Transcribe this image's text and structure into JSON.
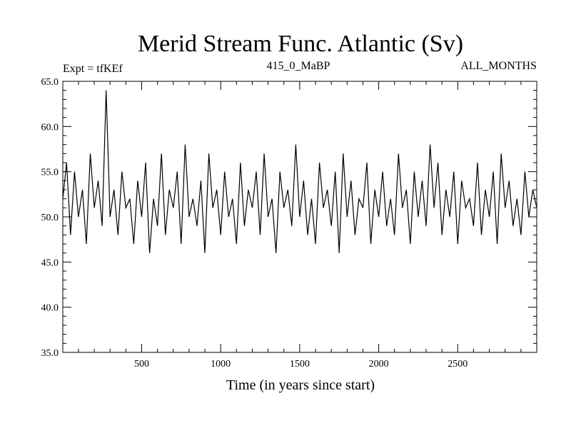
{
  "chart_data": {
    "type": "line",
    "title": "Merid Stream Func. Atlantic (Sv)",
    "subtitle_left": "Expt = tfKEf",
    "subtitle_center": "415_0_MaBP",
    "subtitle_right": "ALL_MONTHS",
    "xlabel": "Time (in years since start)",
    "ylabel": "",
    "xlim": [
      1,
      3000
    ],
    "ylim": [
      35.0,
      65.0
    ],
    "x_ticks": [
      500,
      1000,
      1500,
      2000,
      2500
    ],
    "x_tick_labels": [
      "500",
      "1000",
      "1500",
      "2000",
      "2500"
    ],
    "y_ticks": [
      35.0,
      40.0,
      45.0,
      50.0,
      55.0,
      60.0,
      65.0
    ],
    "y_tick_labels": [
      "35.0",
      "40.0",
      "45.0",
      "50.0",
      "55.0",
      "60.0",
      "65.0"
    ],
    "series": [
      {
        "sampling": "every 25 years",
        "x": [
          1,
          25,
          50,
          75,
          100,
          125,
          150,
          175,
          200,
          225,
          250,
          275,
          300,
          325,
          350,
          375,
          400,
          425,
          450,
          475,
          500,
          525,
          550,
          575,
          600,
          625,
          650,
          675,
          700,
          725,
          750,
          775,
          800,
          825,
          850,
          875,
          900,
          925,
          950,
          975,
          1000,
          1025,
          1050,
          1075,
          1100,
          1125,
          1150,
          1175,
          1200,
          1225,
          1250,
          1275,
          1300,
          1325,
          1350,
          1375,
          1400,
          1425,
          1450,
          1475,
          1500,
          1525,
          1550,
          1575,
          1600,
          1625,
          1650,
          1675,
          1700,
          1725,
          1750,
          1775,
          1800,
          1825,
          1850,
          1875,
          1900,
          1925,
          1950,
          1975,
          2000,
          2025,
          2050,
          2075,
          2100,
          2125,
          2150,
          2175,
          2200,
          2225,
          2250,
          2275,
          2300,
          2325,
          2350,
          2375,
          2400,
          2425,
          2450,
          2475,
          2500,
          2525,
          2550,
          2575,
          2600,
          2625,
          2650,
          2675,
          2700,
          2725,
          2750,
          2775,
          2800,
          2825,
          2850,
          2875,
          2900,
          2925,
          2950,
          2975,
          3000
        ],
        "y": [
          52,
          56,
          48,
          55,
          50,
          53,
          47,
          57,
          51,
          54,
          49,
          64,
          50,
          53,
          48,
          55,
          51,
          52,
          47,
          54,
          50,
          56,
          46,
          52,
          49,
          57,
          48,
          53,
          51,
          55,
          47,
          58,
          50,
          52,
          49,
          54,
          46,
          57,
          51,
          53,
          48,
          55,
          50,
          52,
          47,
          56,
          49,
          53,
          51,
          55,
          48,
          57,
          50,
          52,
          46,
          55,
          51,
          53,
          49,
          58,
          50,
          54,
          48,
          52,
          47,
          56,
          51,
          53,
          49,
          55,
          46,
          57,
          50,
          54,
          48,
          52,
          51,
          56,
          47,
          53,
          50,
          55,
          49,
          52,
          48,
          57,
          51,
          53,
          47,
          55,
          50,
          54,
          49,
          58,
          51,
          56,
          48,
          53,
          50,
          55,
          47,
          54,
          51,
          52,
          49,
          56,
          48,
          53,
          50,
          55,
          47,
          57,
          51,
          54,
          49,
          52,
          48,
          55,
          50,
          53,
          51
        ]
      }
    ]
  }
}
